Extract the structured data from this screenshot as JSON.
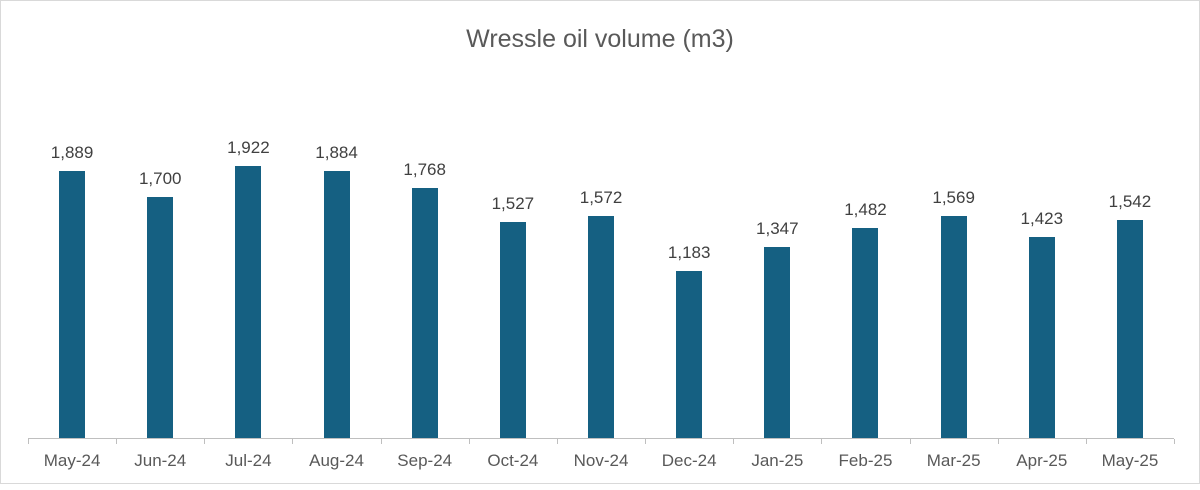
{
  "chart_data": {
    "type": "bar",
    "title": "Wressle oil volume (m3)",
    "categories": [
      "May-24",
      "Jun-24",
      "Jul-24",
      "Aug-24",
      "Sep-24",
      "Oct-24",
      "Nov-24",
      "Dec-24",
      "Jan-25",
      "Feb-25",
      "Mar-25",
      "Apr-25",
      "May-25"
    ],
    "values": [
      1889,
      1700,
      1922,
      1884,
      1768,
      1527,
      1572,
      1183,
      1347,
      1482,
      1569,
      1423,
      1542
    ],
    "data_labels": [
      "1,889",
      "1,700",
      "1,922",
      "1,884",
      "1,768",
      "1,527",
      "1,572",
      "1,183",
      "1,347",
      "1,482",
      "1,569",
      "1,423",
      "1,542"
    ],
    "xlabel": "",
    "ylabel": "",
    "legend_visible": false,
    "gridlines_visible": false,
    "y_axis_visible": false,
    "data_label_position": "outside-end",
    "bar_color": "#156082",
    "data_label_color": "#404040",
    "axis_text_color": "#595959",
    "axis_line_color": "#bfbfbf",
    "chart_border_color": "#d9d9d9",
    "background_color": "#ffffff"
  }
}
